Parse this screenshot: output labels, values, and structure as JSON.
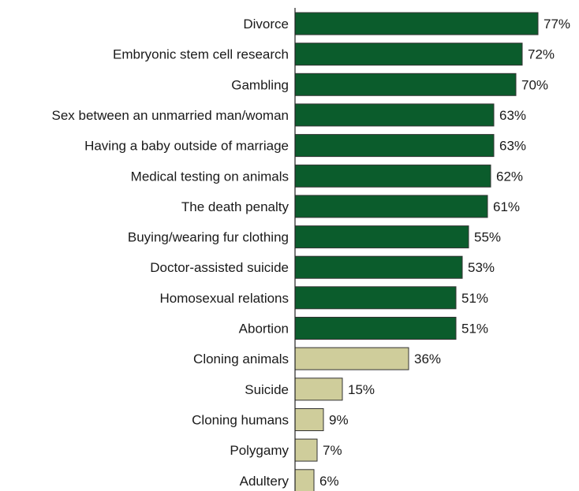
{
  "chart_data": {
    "type": "bar",
    "orientation": "horizontal",
    "title": "",
    "xlabel": "",
    "ylabel": "",
    "xlim": [
      0,
      80
    ],
    "grid": false,
    "legend": "none",
    "value_suffix": "%",
    "colors": {
      "high": "#0b5c2c",
      "low": "#cfcd9b",
      "border": "#333333",
      "axis": "#222222"
    },
    "categories": [
      "Divorce",
      "Embryonic stem cell research",
      "Gambling",
      "Sex between an unmarried man/woman",
      "Having a baby outside of marriage",
      "Medical testing on animals",
      "The death penalty",
      "Buying/wearing fur clothing",
      "Doctor-assisted suicide",
      "Homosexual relations",
      "Abortion",
      "Cloning animals",
      "Suicide",
      "Cloning humans",
      "Polygamy",
      "Adultery"
    ],
    "values": [
      77,
      72,
      70,
      63,
      63,
      62,
      61,
      55,
      53,
      51,
      51,
      36,
      15,
      9,
      7,
      6
    ],
    "value_labels": [
      "77%",
      "72%",
      "70%",
      "63%",
      "63%",
      "62%",
      "61%",
      "55%",
      "53%",
      "51%",
      "51%",
      "36%",
      "15%",
      "9%",
      "7%",
      "6%"
    ],
    "bar_color_groups": [
      "high",
      "high",
      "high",
      "high",
      "high",
      "high",
      "high",
      "high",
      "high",
      "high",
      "high",
      "low",
      "low",
      "low",
      "low",
      "low"
    ]
  }
}
